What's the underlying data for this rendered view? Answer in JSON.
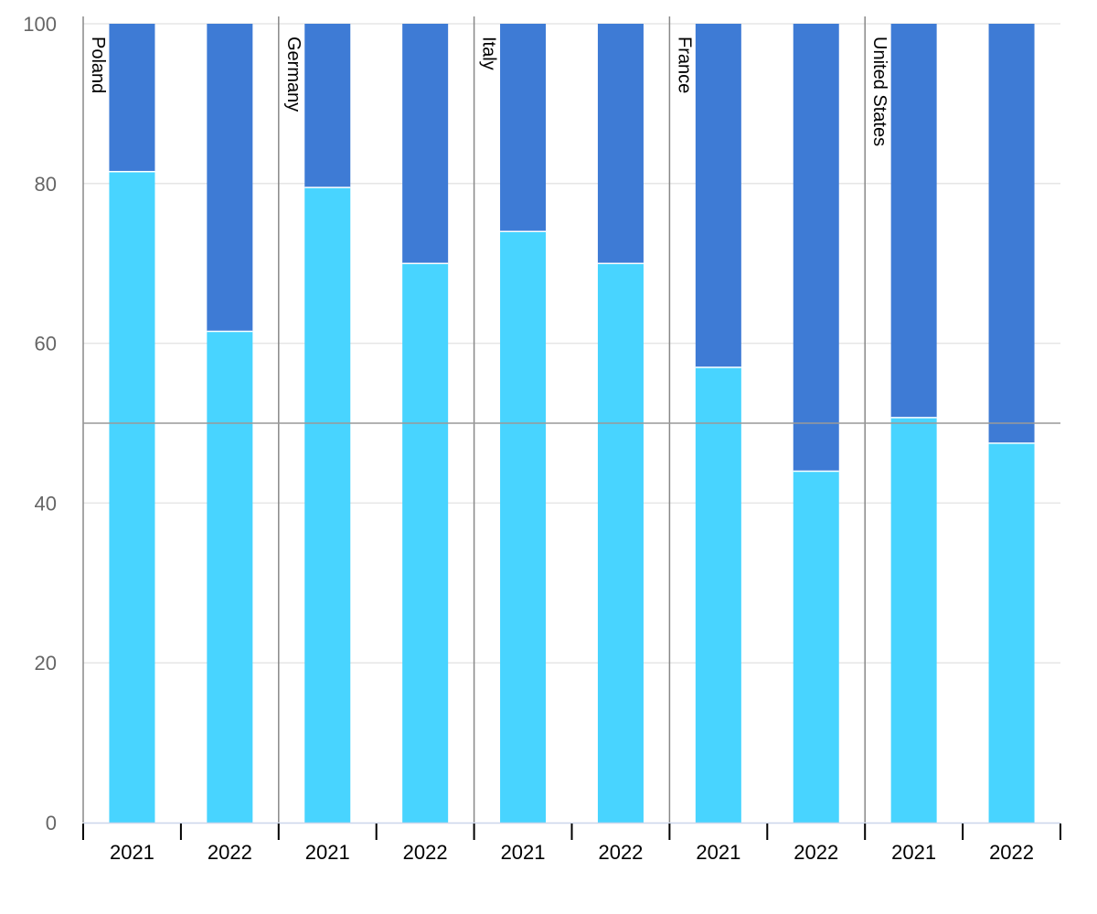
{
  "chart_data": {
    "type": "bar",
    "stacked": true,
    "ylim": [
      0,
      100
    ],
    "yticks": [
      0,
      20,
      40,
      60,
      80,
      100
    ],
    "reference_line": 50,
    "grid": true,
    "colors": {
      "bottom": "#48d4ff",
      "top": "#3e7bd5",
      "reference": "#999999",
      "grid": "#e6e6e6",
      "axis": "#888888"
    },
    "groups": [
      {
        "label": "Poland",
        "bars": [
          {
            "x": "2021",
            "bottom": 81.5,
            "top": 18.5
          },
          {
            "x": "2022",
            "bottom": 61.5,
            "top": 38.5
          }
        ]
      },
      {
        "label": "Germany",
        "bars": [
          {
            "x": "2021",
            "bottom": 79.5,
            "top": 20.5
          },
          {
            "x": "2022",
            "bottom": 70,
            "top": 30
          }
        ]
      },
      {
        "label": "Italy",
        "bars": [
          {
            "x": "2021",
            "bottom": 74,
            "top": 26
          },
          {
            "x": "2022",
            "bottom": 70,
            "top": 30
          }
        ]
      },
      {
        "label": "France",
        "bars": [
          {
            "x": "2021",
            "bottom": 57,
            "top": 43
          },
          {
            "x": "2022",
            "bottom": 44,
            "top": 56
          }
        ]
      },
      {
        "label": "United States",
        "bars": [
          {
            "x": "2021",
            "bottom": 50.7,
            "top": 49.3
          },
          {
            "x": "2022",
            "bottom": 47.5,
            "top": 52.5
          }
        ]
      }
    ]
  }
}
